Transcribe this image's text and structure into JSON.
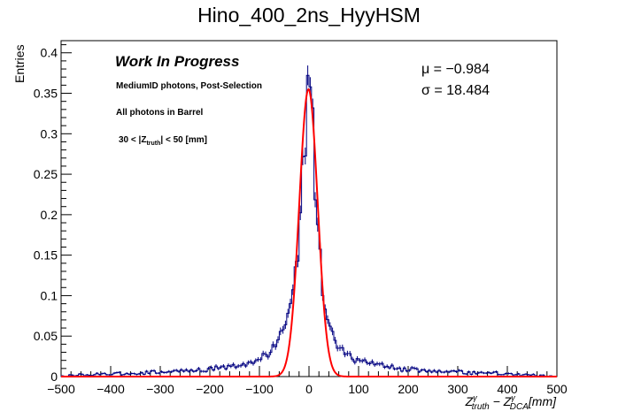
{
  "chart_data": {
    "type": "histogram",
    "title": "Hino_400_2ns_HyyHSM",
    "ylabel": "Entries",
    "xlabel_parts": {
      "z1": "Z",
      "sup1": "γ",
      "sub1": "truth",
      "minus": " − ",
      "z2": "Z",
      "sup2": "γ",
      "sub2": "DCA",
      "unit": "[mm]"
    },
    "xlim": [
      -500,
      500
    ],
    "ylim": [
      0,
      0.415
    ],
    "x_ticks": [
      -500,
      -400,
      -300,
      -200,
      -100,
      0,
      100,
      200,
      300,
      400,
      500
    ],
    "x_tick_labels": [
      "−500",
      "−400",
      "−300",
      "−200",
      "−100",
      "0",
      "100",
      "200",
      "300",
      "400",
      "500"
    ],
    "y_ticks": [
      0,
      0.05,
      0.1,
      0.15,
      0.2,
      0.25,
      0.3,
      0.35,
      0.4
    ],
    "y_tick_labels": [
      "0",
      "0.05",
      "0.1",
      "0.15",
      "0.2",
      "0.25",
      "0.3",
      "0.35",
      "0.4"
    ],
    "annotations": {
      "work_in_progress": "Work In Progress",
      "selection": "MediumID photons, Post-Selection",
      "region": "All photons in Barrel",
      "cut_prefix": "30 < |Z",
      "cut_sub": "truth",
      "cut_suffix": "| < 50 [mm]"
    },
    "fit": {
      "function": "gaussian",
      "mu_label": "μ = −0.984",
      "sigma_label": "σ = 18.484",
      "mu": -0.984,
      "sigma": 18.484,
      "amplitude": 0.355,
      "color": "#ff0000"
    },
    "histogram_color": "#000080",
    "bin_width": 5,
    "series": [
      {
        "name": "histogram",
        "points": [
          [
            -500,
            0.0
          ],
          [
            -480,
            0.001
          ],
          [
            -460,
            0.002
          ],
          [
            -440,
            0.002
          ],
          [
            -420,
            0.003
          ],
          [
            -400,
            0.003
          ],
          [
            -380,
            0.004
          ],
          [
            -360,
            0.004
          ],
          [
            -340,
            0.004
          ],
          [
            -320,
            0.005
          ],
          [
            -300,
            0.006
          ],
          [
            -280,
            0.006
          ],
          [
            -260,
            0.007
          ],
          [
            -240,
            0.007
          ],
          [
            -220,
            0.008
          ],
          [
            -200,
            0.009
          ],
          [
            -190,
            0.01
          ],
          [
            -180,
            0.011
          ],
          [
            -170,
            0.012
          ],
          [
            -160,
            0.013
          ],
          [
            -150,
            0.014
          ],
          [
            -140,
            0.015
          ],
          [
            -130,
            0.016
          ],
          [
            -120,
            0.018
          ],
          [
            -110,
            0.02
          ],
          [
            -100,
            0.022
          ],
          [
            -90,
            0.025
          ],
          [
            -80,
            0.03
          ],
          [
            -70,
            0.04
          ],
          [
            -60,
            0.05
          ],
          [
            -50,
            0.06
          ],
          [
            -45,
            0.07
          ],
          [
            -40,
            0.08
          ],
          [
            -35,
            0.09
          ],
          [
            -30,
            0.11
          ],
          [
            -25,
            0.13
          ],
          [
            -20,
            0.17
          ],
          [
            -15,
            0.22
          ],
          [
            -10,
            0.27
          ],
          [
            -5,
            0.34
          ],
          [
            0,
            0.395
          ],
          [
            5,
            0.33
          ],
          [
            10,
            0.27
          ],
          [
            15,
            0.22
          ],
          [
            20,
            0.17
          ],
          [
            25,
            0.13
          ],
          [
            30,
            0.1
          ],
          [
            35,
            0.08
          ],
          [
            40,
            0.07
          ],
          [
            45,
            0.06
          ],
          [
            50,
            0.05
          ],
          [
            55,
            0.04
          ],
          [
            60,
            0.035
          ],
          [
            70,
            0.03
          ],
          [
            80,
            0.025
          ],
          [
            90,
            0.022
          ],
          [
            100,
            0.02
          ],
          [
            110,
            0.018
          ],
          [
            120,
            0.016
          ],
          [
            130,
            0.015
          ],
          [
            140,
            0.014
          ],
          [
            150,
            0.013
          ],
          [
            160,
            0.012
          ],
          [
            170,
            0.011
          ],
          [
            180,
            0.01
          ],
          [
            190,
            0.009
          ],
          [
            200,
            0.009
          ],
          [
            220,
            0.008
          ],
          [
            240,
            0.007
          ],
          [
            260,
            0.007
          ],
          [
            280,
            0.006
          ],
          [
            300,
            0.006
          ],
          [
            320,
            0.005
          ],
          [
            340,
            0.004
          ],
          [
            360,
            0.004
          ],
          [
            380,
            0.004
          ],
          [
            400,
            0.003
          ],
          [
            420,
            0.003
          ],
          [
            440,
            0.002
          ],
          [
            460,
            0.002
          ],
          [
            480,
            0.001
          ],
          [
            500,
            0.0
          ]
        ]
      }
    ]
  }
}
